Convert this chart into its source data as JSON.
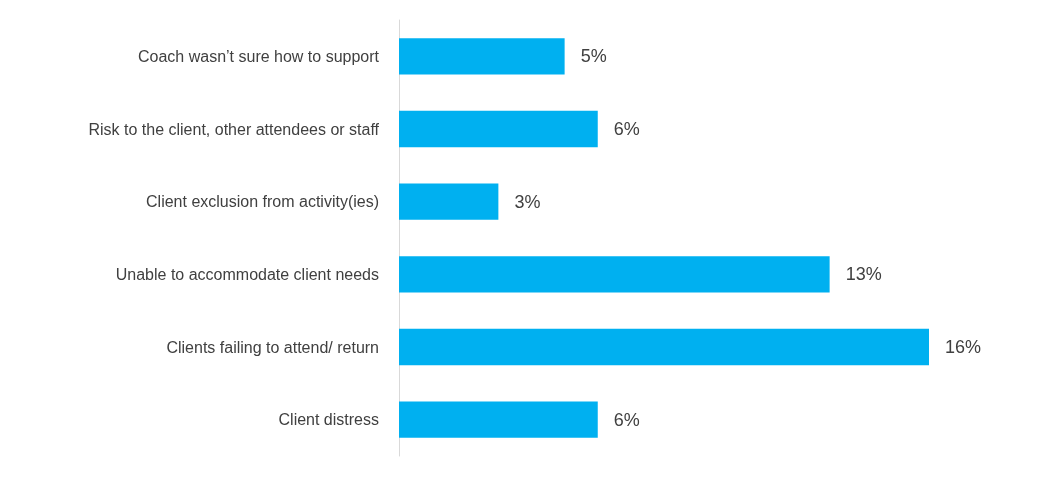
{
  "chart_data": {
    "type": "bar",
    "orientation": "horizontal",
    "categories": [
      "Coach wasn’t sure how to support",
      "Risk to the client, other attendees or staff",
      "Client exclusion from activity(ies)",
      "Unable to accommodate client needs",
      "Clients failing to attend/ return",
      "Client distress"
    ],
    "values": [
      5,
      6,
      3,
      13,
      16,
      6
    ],
    "value_labels": [
      "5%",
      "6%",
      "3%",
      "13%",
      "16%",
      "6%"
    ],
    "color": "#00b0f0"
  }
}
